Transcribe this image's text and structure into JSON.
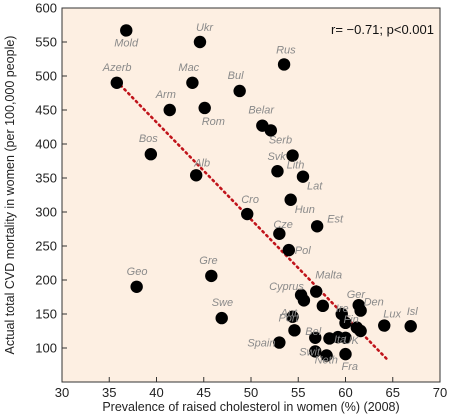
{
  "chart_data": {
    "type": "scatter",
    "title": "",
    "xlabel": "Prevalence of raised cholesterol in women (%) (2008)",
    "ylabel": "Actual total CVD mortality in women (per 100,000 people)",
    "xlim": [
      30,
      70
    ],
    "ylim": [
      50,
      600
    ],
    "xticks": [
      30,
      35,
      40,
      45,
      50,
      55,
      60,
      65,
      70
    ],
    "yticks": [
      100,
      150,
      200,
      250,
      300,
      350,
      400,
      450,
      500,
      550,
      600
    ],
    "annotation": "r= −0.71; p<0.001",
    "plot_background": "#fdefe2",
    "marker_color": "#000000",
    "trendline_color": "#c0141b",
    "trendline": {
      "x": [
        35.8,
        64.5
      ],
      "y": [
        492,
        82
      ]
    },
    "points": [
      {
        "label": "Mold",
        "x": 36.8,
        "y": 567
      },
      {
        "label": "Ukr",
        "x": 44.6,
        "y": 550
      },
      {
        "label": "Rus",
        "x": 53.5,
        "y": 517
      },
      {
        "label": "Azerb",
        "x": 35.8,
        "y": 490
      },
      {
        "label": "Mac",
        "x": 43.8,
        "y": 490
      },
      {
        "label": "Bul",
        "x": 48.8,
        "y": 478
      },
      {
        "label": "Arm",
        "x": 41.4,
        "y": 450
      },
      {
        "label": "Rom",
        "x": 45.1,
        "y": 453
      },
      {
        "label": "Belar",
        "x": 51.2,
        "y": 427
      },
      {
        "label": "Serb",
        "x": 52.1,
        "y": 420
      },
      {
        "label": "Bos",
        "x": 39.4,
        "y": 385
      },
      {
        "label": "Lith",
        "x": 54.4,
        "y": 383
      },
      {
        "label": "Svk",
        "x": 52.8,
        "y": 360
      },
      {
        "label": "Alb",
        "x": 44.2,
        "y": 354
      },
      {
        "label": "Lat",
        "x": 55.5,
        "y": 352
      },
      {
        "label": "Hun",
        "x": 54.2,
        "y": 318
      },
      {
        "label": "Cro",
        "x": 49.6,
        "y": 297
      },
      {
        "label": "Est",
        "x": 57.0,
        "y": 279
      },
      {
        "label": "Cze",
        "x": 53.0,
        "y": 268
      },
      {
        "label": "Pol",
        "x": 54.0,
        "y": 244
      },
      {
        "label": "Gre",
        "x": 45.8,
        "y": 206
      },
      {
        "label": "Geo",
        "x": 37.9,
        "y": 190
      },
      {
        "label": "Cyprus",
        "x": 55.3,
        "y": 178
      },
      {
        "label": "Malta",
        "x": 56.9,
        "y": 183
      },
      {
        "label": "",
        "x": 55.6,
        "y": 170
      },
      {
        "label": "Ger",
        "x": 61.4,
        "y": 163
      },
      {
        "label": "",
        "x": 57.6,
        "y": 162
      },
      {
        "label": "Den",
        "x": 61.6,
        "y": 155
      },
      {
        "label": "Swe",
        "x": 46.9,
        "y": 144
      },
      {
        "label": "Lux",
        "x": 64.1,
        "y": 133
      },
      {
        "label": "Isl",
        "x": 66.9,
        "y": 132
      },
      {
        "label": "Aut",
        "x": 54.4,
        "y": 146
      },
      {
        "label": "Ire",
        "x": 59.6,
        "y": 150
      },
      {
        "label": "Fin",
        "x": 60.0,
        "y": 137
      },
      {
        "label": "",
        "x": 61.2,
        "y": 130
      },
      {
        "label": "",
        "x": 61.6,
        "y": 125
      },
      {
        "label": "Port",
        "x": 54.6,
        "y": 126
      },
      {
        "label": "Bel",
        "x": 56.8,
        "y": 115
      },
      {
        "label": "",
        "x": 58.3,
        "y": 114
      },
      {
        "label": "Ita",
        "x": 59.2,
        "y": 116
      },
      {
        "label": "UK",
        "x": 60.0,
        "y": 115
      },
      {
        "label": "Spain",
        "x": 53.0,
        "y": 108
      },
      {
        "label": "Swit",
        "x": 56.8,
        "y": 95
      },
      {
        "label": "Neth",
        "x": 58.0,
        "y": 89
      },
      {
        "label": "Fra",
        "x": 60.0,
        "y": 91
      }
    ]
  }
}
